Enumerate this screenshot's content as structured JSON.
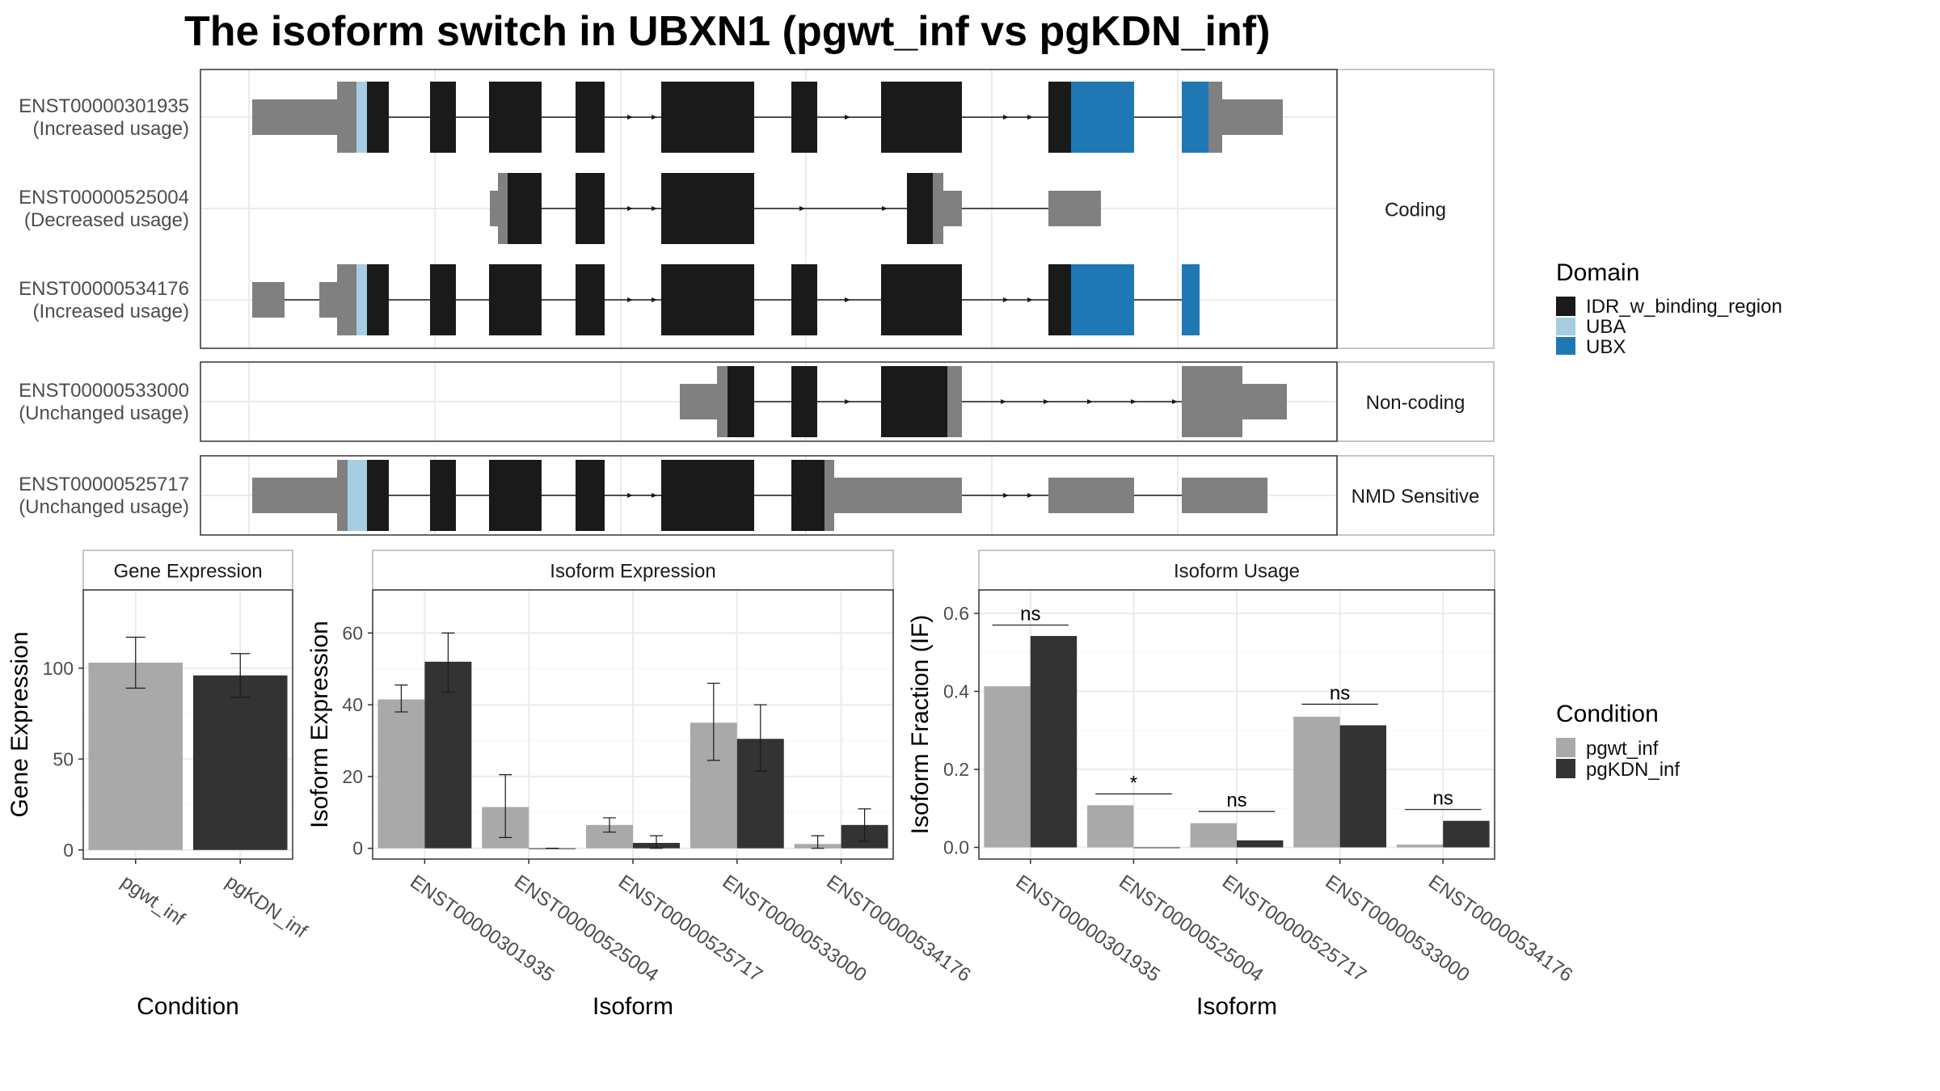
{
  "title": "The isoform switch in UBXN1 (pgwt_inf vs pgKDN_inf)",
  "colors": {
    "idr": "#1a1a1a",
    "uba": "#a6cee3",
    "ubx": "#1f78b4",
    "utr": "#808080",
    "pgwt_inf": "#a9a9a9",
    "pgKDN_inf": "#333333"
  },
  "structure_panel": {
    "facets": [
      {
        "label": "Coding"
      },
      {
        "label": "Non-coding"
      },
      {
        "label": "NMD Sensitive"
      }
    ],
    "transcripts": [
      {
        "id": "ENST00000301935",
        "usage": "(Increased usage)"
      },
      {
        "id": "ENST00000525004",
        "usage": "(Decreased usage)"
      },
      {
        "id": "ENST00000534176",
        "usage": "(Increased usage)"
      },
      {
        "id": "ENST00000533000",
        "usage": "(Unchanged usage)"
      },
      {
        "id": "ENST00000525717",
        "usage": "(Unchanged usage)"
      }
    ]
  },
  "legend_domain": {
    "title": "Domain",
    "items": [
      {
        "label": "IDR_w_binding_region",
        "color": "#1a1a1a"
      },
      {
        "label": "UBA",
        "color": "#a6cee3"
      },
      {
        "label": "UBX",
        "color": "#1f78b4"
      }
    ]
  },
  "legend_condition": {
    "title": "Condition",
    "items": [
      {
        "label": "pgwt_inf",
        "color": "#a9a9a9"
      },
      {
        "label": "pgKDN_inf",
        "color": "#333333"
      }
    ]
  },
  "chart_data": [
    {
      "type": "bar",
      "title": "Gene Expression",
      "xlabel": "Condition",
      "ylabel": "Gene Expression",
      "categories": [
        "pgwt_inf",
        "pgKDN_inf"
      ],
      "values": [
        103,
        96
      ],
      "error_low": [
        89,
        84
      ],
      "error_high": [
        117,
        108
      ],
      "ylim": [
        -5,
        143
      ],
      "yticks": [
        0,
        50,
        100
      ],
      "grid": true
    },
    {
      "type": "bar",
      "title": "Isoform Expression",
      "xlabel": "Isoform",
      "ylabel": "Isoform Expression",
      "categories": [
        "ENST00000301935",
        "ENST00000525004",
        "ENST00000525717",
        "ENST00000533000",
        "ENST00000534176"
      ],
      "series": [
        {
          "name": "pgwt_inf",
          "values": [
            41.5,
            11.5,
            6.5,
            35,
            1.2
          ],
          "error_low": [
            38,
            3,
            4.5,
            24.5,
            0
          ],
          "error_high": [
            45.5,
            20.5,
            8.5,
            46,
            3.5
          ]
        },
        {
          "name": "pgKDN_inf",
          "values": [
            52,
            0,
            1.5,
            30.5,
            6.5
          ],
          "error_low": [
            43.5,
            0,
            0,
            21.5,
            2
          ],
          "error_high": [
            60,
            0,
            3.5,
            40,
            11
          ]
        }
      ],
      "ylim": [
        -3,
        72
      ],
      "yticks": [
        0,
        20,
        40,
        60
      ],
      "grid": true
    },
    {
      "type": "bar",
      "title": "Isoform Usage",
      "xlabel": "Isoform",
      "ylabel": "Isoform Fraction (IF)",
      "categories": [
        "ENST00000301935",
        "ENST00000525004",
        "ENST00000525717",
        "ENST00000533000",
        "ENST00000534176"
      ],
      "series": [
        {
          "name": "pgwt_inf",
          "values": [
            0.413,
            0.108,
            0.062,
            0.335,
            0.007
          ]
        },
        {
          "name": "pgKDN_inf",
          "values": [
            0.542,
            0,
            0.018,
            0.313,
            0.068
          ]
        }
      ],
      "significance": [
        "ns",
        "*",
        "ns",
        "ns",
        "ns"
      ],
      "ylim": [
        -0.03,
        0.66
      ],
      "yticks": [
        0.0,
        0.2,
        0.4,
        0.6
      ],
      "ytick_labels": [
        "0.0",
        "0.2",
        "0.4",
        "0.6"
      ],
      "grid": true
    }
  ]
}
